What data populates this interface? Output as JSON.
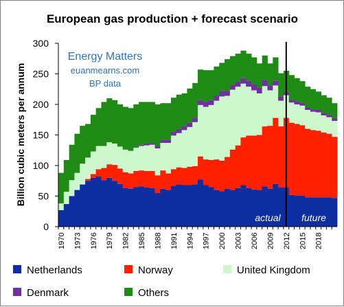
{
  "chart_data": {
    "type": "bar",
    "stacked": true,
    "title": "European gas production + forecast scenario",
    "ylabel": "Billion cubic meters per annum",
    "xlabel": "",
    "ylim": [
      0,
      300
    ],
    "yticks": [
      "0",
      "50",
      "100",
      "150",
      "200",
      "250",
      "300"
    ],
    "xtick_labels": [
      "1970",
      "1973",
      "1976",
      "1979",
      "1982",
      "1985",
      "1988",
      "1991",
      "1994",
      "1997",
      "2000",
      "2003",
      "2006",
      "2009",
      "2012",
      "2015",
      "2018"
    ],
    "annotations": {
      "watermark_line1": "Energy Matters",
      "watermark_line2": "euanmearns.com",
      "watermark_line3": "BP data",
      "actual_label": "actual",
      "future_label": "future"
    },
    "divider_year": 2012,
    "grid": false,
    "legend_position": "bottom",
    "x": [
      1970,
      1971,
      1972,
      1973,
      1974,
      1975,
      1976,
      1977,
      1978,
      1979,
      1980,
      1981,
      1982,
      1983,
      1984,
      1985,
      1986,
      1987,
      1988,
      1989,
      1990,
      1991,
      1992,
      1993,
      1994,
      1995,
      1996,
      1997,
      1998,
      1999,
      2000,
      2001,
      2002,
      2003,
      2004,
      2005,
      2006,
      2007,
      2008,
      2009,
      2010,
      2011,
      2012,
      2013,
      2014,
      2015,
      2016,
      2017,
      2018,
      2019,
      2020,
      2021
    ],
    "series": [
      {
        "name": "Netherlands",
        "color": "#0d2ea0",
        "values": [
          27,
          37,
          50,
          60,
          69,
          75,
          80,
          82,
          76,
          80,
          75,
          70,
          63,
          62,
          65,
          66,
          64,
          63,
          55,
          62,
          60,
          67,
          69,
          68,
          68,
          69,
          77,
          68,
          65,
          60,
          58,
          62,
          60,
          63,
          68,
          63,
          61,
          60,
          66,
          62,
          70,
          64,
          64,
          52,
          51,
          51,
          48,
          48,
          48,
          48,
          48,
          47
        ]
      },
      {
        "name": "Norway",
        "color": "#ff2000",
        "values": [
          0,
          0,
          0,
          0,
          0,
          3,
          6,
          12,
          20,
          22,
          26,
          25,
          26,
          25,
          26,
          26,
          27,
          28,
          29,
          30,
          27,
          27,
          28,
          28,
          30,
          30,
          38,
          42,
          44,
          50,
          50,
          52,
          66,
          70,
          78,
          86,
          88,
          90,
          98,
          103,
          108,
          100,
          114,
          118,
          117,
          115,
          112,
          110,
          109,
          106,
          104,
          100
        ]
      },
      {
        "name": "United Kingdom",
        "color": "#cdf7cd",
        "values": [
          11,
          20,
          26,
          28,
          34,
          35,
          37,
          38,
          36,
          36,
          35,
          36,
          37,
          37,
          38,
          40,
          42,
          43,
          44,
          45,
          50,
          55,
          56,
          62,
          65,
          72,
          84,
          86,
          90,
          96,
          105,
          100,
          98,
          96,
          88,
          80,
          74,
          68,
          66,
          58,
          53,
          42,
          37,
          33,
          32,
          32,
          31,
          30,
          30,
          28,
          27,
          26
        ]
      },
      {
        "name": "Denmark",
        "color": "#7030a0",
        "values": [
          0,
          0,
          0,
          0,
          0,
          0,
          0,
          0,
          0,
          0,
          0,
          0,
          0,
          0,
          1,
          2,
          3,
          3,
          4,
          5,
          5,
          6,
          7,
          7,
          7,
          7,
          8,
          8,
          8,
          8,
          9,
          8,
          8,
          8,
          9,
          10,
          10,
          9,
          10,
          8,
          8,
          7,
          6,
          5,
          5,
          5,
          4,
          4,
          4,
          4,
          4,
          4
        ]
      },
      {
        "name": "Others",
        "color": "#1e8b14",
        "values": [
          50,
          52,
          58,
          64,
          62,
          55,
          60,
          62,
          72,
          72,
          71,
          69,
          70,
          70,
          70,
          70,
          68,
          67,
          68,
          60,
          60,
          56,
          56,
          53,
          56,
          57,
          50,
          52,
          49,
          48,
          46,
          52,
          47,
          46,
          45,
          44,
          44,
          40,
          40,
          36,
          38,
          38,
          34,
          40,
          38,
          35,
          34,
          33,
          30,
          29,
          28,
          25
        ]
      }
    ]
  }
}
